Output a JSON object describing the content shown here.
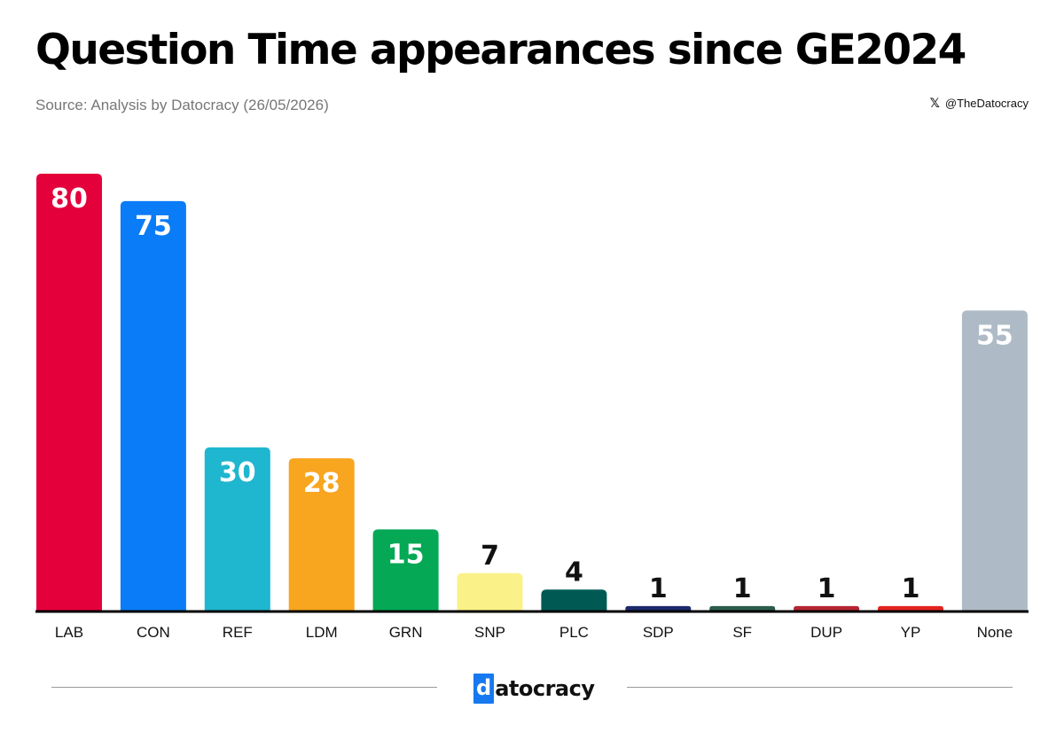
{
  "header": {
    "title": "Question Time appearances since GE2024",
    "subtitle": "Source: Analysis by Datocracy (26/05/2026)",
    "handle_icon": "x-logo-icon",
    "handle_glyph": "𝕏",
    "handle": "@TheDatocracy"
  },
  "chart_data": {
    "type": "bar",
    "title": "Question Time appearances since GE2024",
    "xlabel": "",
    "ylabel": "",
    "ylim": [
      0,
      80
    ],
    "grid": false,
    "legend": "none",
    "categories": [
      "LAB",
      "CON",
      "REF",
      "LDM",
      "GRN",
      "SNP",
      "PLC",
      "SDP",
      "SF",
      "DUP",
      "YP",
      "None"
    ],
    "values": [
      80,
      75,
      30,
      28,
      15,
      7,
      4,
      1,
      1,
      1,
      1,
      55
    ],
    "colors": [
      "#e4003b",
      "#0b7cf7",
      "#1fb6cf",
      "#f8a51f",
      "#04a855",
      "#fbf189",
      "#005a53",
      "#1d2a6c",
      "#2b5c4c",
      "#b52532",
      "#e3231f",
      "#aebbc6"
    ],
    "data_labels": [
      "80",
      "75",
      "30",
      "28",
      "15",
      "7",
      "4",
      "1",
      "1",
      "1",
      "1",
      "55"
    ]
  },
  "footer": {
    "logo_first": "d",
    "logo_rest": "atocracy",
    "logo_accent": "#1679f0"
  }
}
